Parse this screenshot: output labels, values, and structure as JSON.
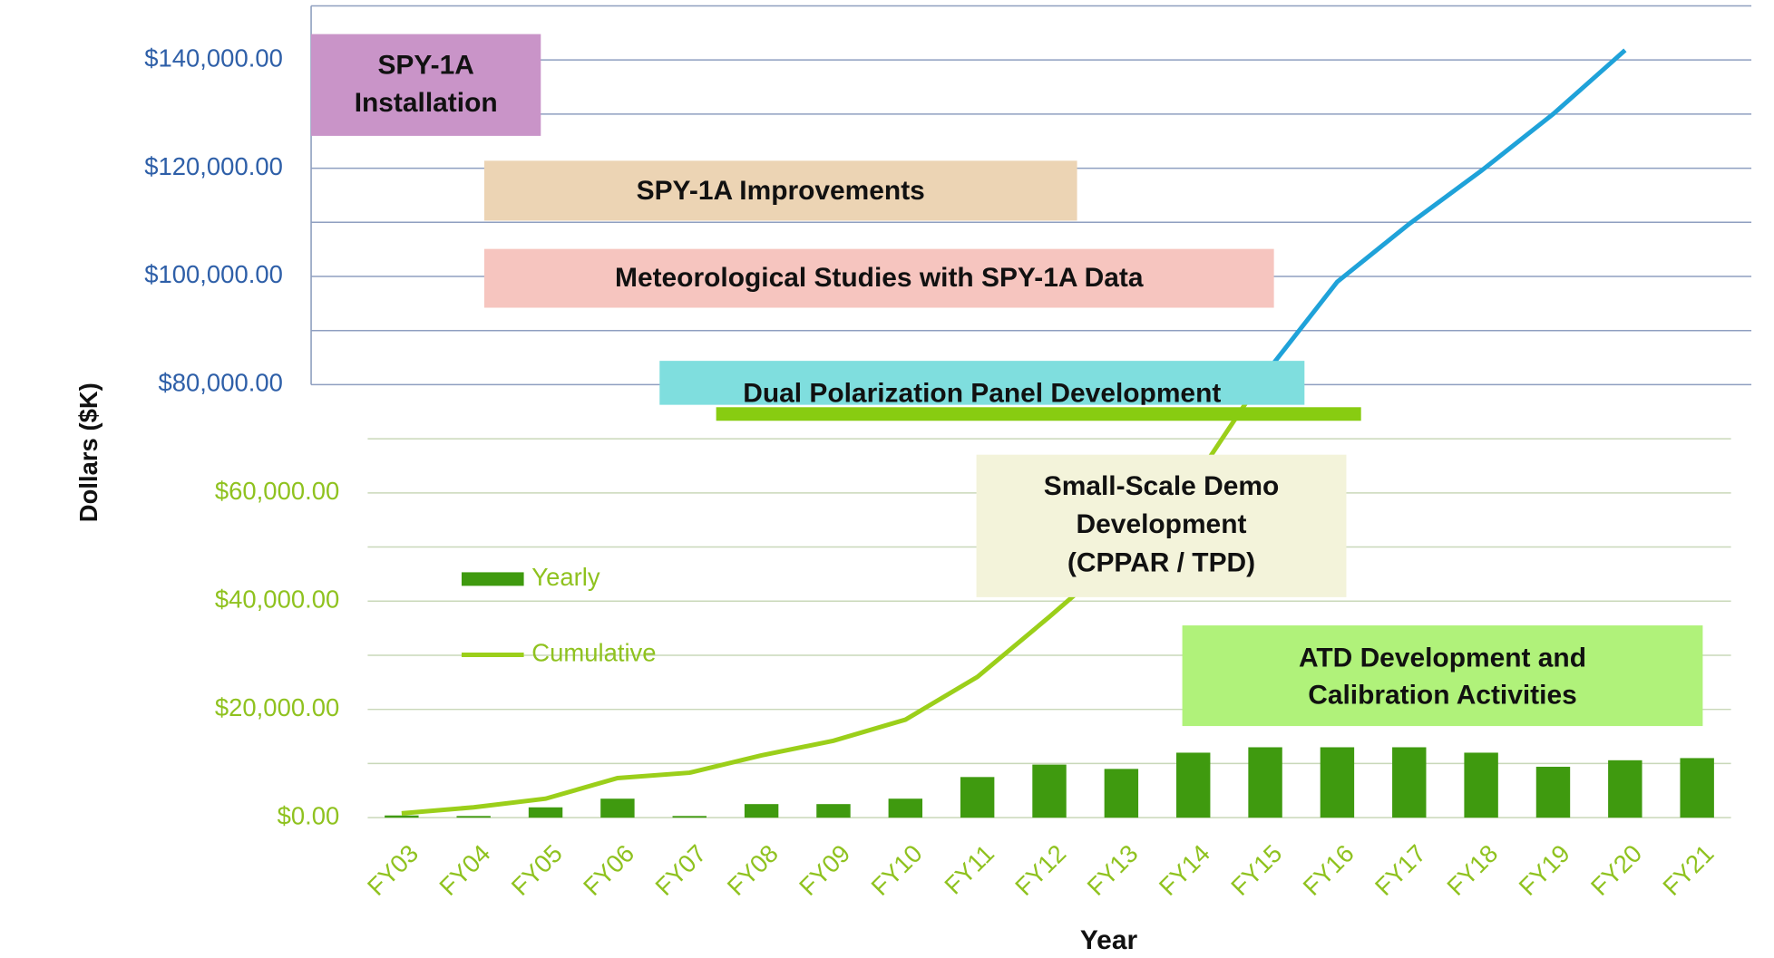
{
  "chart_data": {
    "type": "bar",
    "y_label": "Dollars ($K)",
    "x_label": "Year",
    "categories": [
      "FY03",
      "FY04",
      "FY05",
      "FY06",
      "FY07",
      "FY08",
      "FY09",
      "FY10",
      "FY11",
      "FY12",
      "FY13",
      "FY14",
      "FY15",
      "FY16",
      "FY17",
      "FY18",
      "FY19",
      "FY20",
      "FY21"
    ],
    "series": [
      {
        "name": "Yearly",
        "type": "bar",
        "color": "#3f9a0f",
        "values": [
          400,
          300,
          1900,
          3500,
          300,
          2500,
          2500,
          3500,
          7500,
          9800,
          9000,
          12000,
          13000,
          13000,
          13000,
          12000,
          9400,
          10600,
          11000
        ]
      },
      {
        "name": "Cumulative",
        "type": "line",
        "color": "#9bcf1a",
        "color_upper": "#1fa2d9",
        "values": [
          800,
          1900,
          3500,
          7300,
          8300,
          11500,
          14200,
          18100,
          26000,
          37100,
          48600,
          62000,
          82000,
          99000,
          109700,
          119500,
          130000,
          141800,
          null
        ]
      }
    ],
    "ylim": [
      0,
      150000
    ],
    "yticks": [
      {
        "value": 0,
        "label": "$0.00"
      },
      {
        "value": 20000,
        "label": "$20,000.00"
      },
      {
        "value": 40000,
        "label": "$40,000.00"
      },
      {
        "value": 60000,
        "label": "$60,000.00"
      },
      {
        "value": 80000,
        "label": "$80,000.00"
      },
      {
        "value": 100000,
        "label": "$100,000.00"
      },
      {
        "value": 120000,
        "label": "$120,000.00"
      },
      {
        "value": 140000,
        "label": "$140,000.00"
      }
    ],
    "minor_gridlines": [
      10000,
      30000,
      50000,
      70000,
      90000,
      110000,
      130000,
      150000
    ],
    "grid": true,
    "annotations": [
      {
        "lines": [
          "SPY-1A",
          "Installation"
        ],
        "color": "#c994c8"
      },
      {
        "lines": [
          "SPY-1A Improvements"
        ],
        "color": "#ecd4b4"
      },
      {
        "lines": [
          "Meteorological Studies with SPY-1A Data"
        ],
        "color": "#f6c5bf"
      },
      {
        "lines": [
          "Dual Polarization Panel Development"
        ],
        "color": "#7fdede"
      },
      {
        "lines": [
          "Small-Scale Demo",
          "Development",
          "(CPPAR / TPD)"
        ],
        "color": "#f3f3da"
      },
      {
        "lines": [
          "ATD Development and",
          "Calibration Activities"
        ],
        "color": "#b0f27a"
      }
    ]
  }
}
